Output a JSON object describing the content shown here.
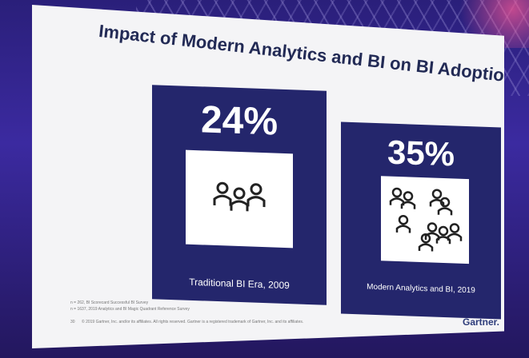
{
  "slide": {
    "title": "Impact of Modern Analytics and BI on BI Adoption",
    "panels": [
      {
        "percent": "24%",
        "caption": "Traditional BI Era, 2009"
      },
      {
        "percent": "35%",
        "caption": "Modern Analytics and BI, 2019"
      }
    ],
    "footnotes": [
      "n = 262, BI Scorecard Successful BI Survey",
      "n = 1637, 2019 Analytics and BI Magic Quadrant Reference Survey"
    ],
    "page_number": "30",
    "copyright": "© 2019 Gartner, Inc. and/or its affiliates. All rights reserved. Gartner is a registered trademark of Gartner, Inc. and its affiliates.",
    "brand": "Gartner."
  },
  "colors": {
    "panel": "#24266c",
    "screen": "#f4f4f6"
  }
}
